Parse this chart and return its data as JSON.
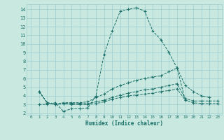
{
  "xlabel": "Humidex (Indice chaleur)",
  "bg_color": "#c8e8e0",
  "grid_color": "#9ecece",
  "line_color": "#1a7068",
  "xlim": [
    -0.5,
    23.5
  ],
  "ylim": [
    1.8,
    14.6
  ],
  "xticks": [
    0,
    1,
    2,
    3,
    4,
    5,
    6,
    7,
    8,
    9,
    10,
    11,
    12,
    13,
    14,
    15,
    16,
    17,
    18,
    19,
    20,
    21,
    22,
    23
  ],
  "yticks": [
    2,
    3,
    4,
    5,
    6,
    7,
    8,
    9,
    10,
    11,
    12,
    13,
    14
  ],
  "series": [
    {
      "x": [
        1,
        2,
        3,
        4,
        5,
        6,
        7,
        8,
        9,
        10,
        11,
        12,
        13,
        14,
        15,
        16,
        17,
        18,
        19
      ],
      "y": [
        3.0,
        3.0,
        3.2,
        2.2,
        2.5,
        2.5,
        2.6,
        4.0,
        8.8,
        11.5,
        13.8,
        14.0,
        14.2,
        13.8,
        11.5,
        10.5,
        9.0,
        7.2,
        3.5
      ]
    },
    {
      "x": [
        1,
        2,
        3,
        4,
        5,
        6,
        7,
        8,
        9,
        10,
        11,
        12,
        13,
        14,
        15,
        16,
        17,
        18,
        19,
        20,
        21,
        22
      ],
      "y": [
        4.5,
        3.2,
        3.0,
        3.2,
        3.2,
        3.2,
        3.3,
        3.8,
        4.2,
        4.8,
        5.2,
        5.5,
        5.8,
        6.0,
        6.2,
        6.3,
        6.8,
        7.2,
        5.2,
        4.5,
        4.0,
        3.8
      ]
    },
    {
      "x": [
        1,
        2,
        3,
        4,
        5,
        6,
        7,
        8,
        9,
        10,
        11,
        12,
        13,
        14,
        15,
        16,
        17,
        18,
        19,
        20,
        21,
        22,
        23
      ],
      "y": [
        4.5,
        3.2,
        3.0,
        3.1,
        3.1,
        3.1,
        3.1,
        3.3,
        3.5,
        3.8,
        4.1,
        4.3,
        4.5,
        4.7,
        4.8,
        5.0,
        5.2,
        5.4,
        3.7,
        3.4,
        3.4,
        3.4,
        3.4
      ]
    },
    {
      "x": [
        1,
        2,
        3,
        4,
        5,
        6,
        7,
        8,
        9,
        10,
        11,
        12,
        13,
        14,
        15,
        16,
        17,
        18,
        19,
        20,
        21,
        22,
        23
      ],
      "y": [
        4.5,
        3.2,
        3.0,
        3.1,
        3.0,
        3.0,
        3.0,
        3.1,
        3.3,
        3.6,
        3.8,
        4.0,
        4.1,
        4.2,
        4.3,
        4.5,
        4.6,
        4.8,
        3.5,
        3.2,
        3.1,
        3.1,
        3.1
      ]
    }
  ]
}
